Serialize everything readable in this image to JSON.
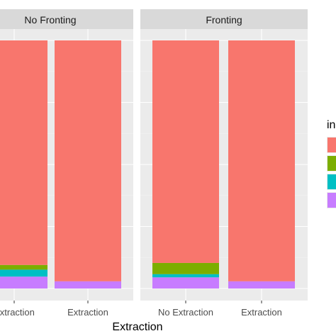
{
  "chart_data": {
    "type": "bar",
    "stacked": true,
    "normalized": true,
    "xlabel": "Extraction",
    "legend_title": "in",
    "legend_position": "right",
    "grid": true,
    "categories": [
      "No Extraction",
      "Extraction"
    ],
    "tick_labels": [
      "Extraction",
      "Extraction",
      "No Extraction",
      "Extraction"
    ],
    "facets": [
      {
        "label": "No Fronting",
        "bars": [
          {
            "category": "No Extraction",
            "values": [
              0.905,
              0.019,
              0.028,
              0.048
            ]
          },
          {
            "category": "Extraction",
            "values": [
              0.971,
              0.0,
              0.0,
              0.029
            ]
          }
        ]
      },
      {
        "label": "Fronting",
        "bars": [
          {
            "category": "No Extraction",
            "values": [
              0.897,
              0.045,
              0.013,
              0.045
            ]
          },
          {
            "category": "Extraction",
            "values": [
              0.971,
              0.0,
              0.0,
              0.029
            ]
          }
        ]
      }
    ],
    "series_colors": [
      "#F8766D",
      "#7CAE00",
      "#00BFC4",
      "#C77CFF"
    ]
  },
  "colors": {
    "panel_bg": "#EBEBEB",
    "strip_bg": "#D9D9D9",
    "grid_major": "#ffffff",
    "grid_minor": "#F5F5F5"
  }
}
